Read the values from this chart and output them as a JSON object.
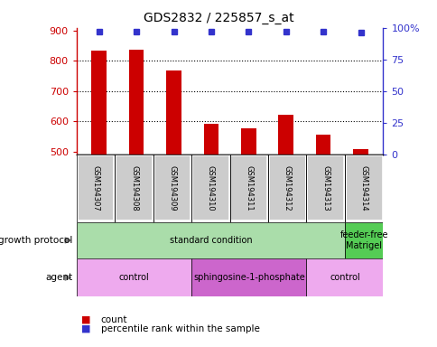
{
  "title": "GDS2832 / 225857_s_at",
  "samples": [
    "GSM194307",
    "GSM194308",
    "GSM194309",
    "GSM194310",
    "GSM194311",
    "GSM194312",
    "GSM194313",
    "GSM194314"
  ],
  "counts": [
    833,
    836,
    768,
    593,
    577,
    620,
    557,
    507
  ],
  "percentile_ranks": [
    97,
    97,
    97,
    97,
    97,
    97,
    97,
    96
  ],
  "ylim_left": [
    490,
    910
  ],
  "ylim_right": [
    0,
    100
  ],
  "yticks_left": [
    500,
    600,
    700,
    800,
    900
  ],
  "yticks_right": [
    0,
    25,
    50,
    75,
    100
  ],
  "bar_color": "#cc0000",
  "dot_color": "#3333cc",
  "bar_width": 0.4,
  "growth_protocol_groups": [
    {
      "label": "standard condition",
      "start": 0,
      "end": 7,
      "color": "#aaddaa"
    },
    {
      "label": "feeder-free\nMatrigel",
      "start": 7,
      "end": 8,
      "color": "#55cc55"
    }
  ],
  "agent_groups": [
    {
      "label": "control",
      "start": 0,
      "end": 3,
      "color": "#eeaaee"
    },
    {
      "label": "sphingosine-1-phosphate",
      "start": 3,
      "end": 6,
      "color": "#cc66cc"
    },
    {
      "label": "control",
      "start": 6,
      "end": 8,
      "color": "#eeaaee"
    }
  ],
  "legend_count_color": "#cc0000",
  "legend_pct_color": "#3333cc",
  "axis_color_left": "#cc0000",
  "axis_color_right": "#3333cc",
  "sample_label_area_color": "#cccccc",
  "background_color": "#ffffff",
  "grid_yticks": [
    600,
    700,
    800
  ]
}
